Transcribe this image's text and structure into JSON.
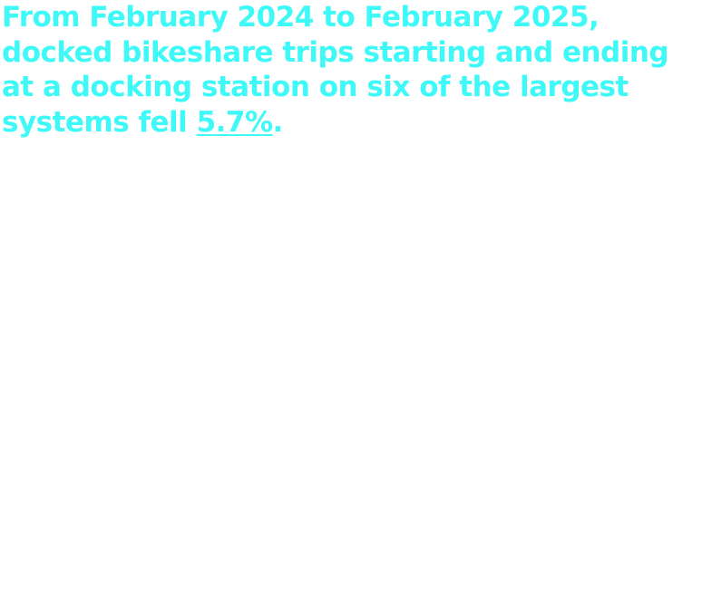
{
  "headline": {
    "text_before": "From February 2024 to February 2025, docked bikeshare trips starting and ending at a docking station on six of the largest systems fell ",
    "link_text": "5.7%",
    "text_after": ".",
    "color": "#3ff8f8"
  }
}
